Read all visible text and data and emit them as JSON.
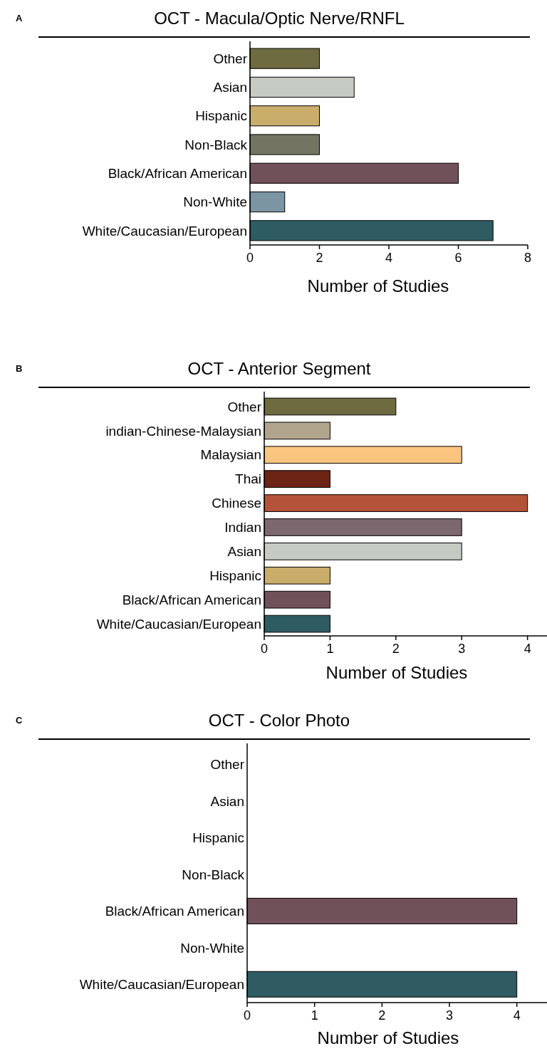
{
  "chart_data": [
    {
      "type": "bar",
      "orientation": "horizontal",
      "title": "OCT - Macula/Optic Nerve/RNFL",
      "annotations": [
        "A"
      ],
      "xlabel": "Number of Studies",
      "categories": [
        "Other",
        "Asian",
        "Hispanic",
        "Non-Black",
        "Black/African American",
        "Non-White",
        "White/Caucasian/European"
      ],
      "values": [
        2,
        3,
        2,
        2,
        6,
        1,
        7
      ],
      "colors": [
        "#6e6b40",
        "#c5cbc3",
        "#c9ad6a",
        "#737462",
        "#715159",
        "#7c95a3",
        "#2f5b62"
      ],
      "xlim": [
        0,
        8
      ],
      "xticks": [
        0,
        2,
        4,
        6,
        8
      ]
    },
    {
      "type": "bar",
      "orientation": "horizontal",
      "title": "OCT - Anterior Segment",
      "annotations": [
        "B"
      ],
      "xlabel": "Number of Studies",
      "categories": [
        "Other",
        "indian-Chinese-Malaysian",
        "Malaysian",
        "Thai",
        "Chinese",
        "Indian",
        "Asian",
        "Hispanic",
        "Black/African American",
        "White/Caucasian/European"
      ],
      "values": [
        2,
        1,
        3,
        1,
        4,
        3,
        3,
        1,
        1,
        1
      ],
      "colors": [
        "#6e6b40",
        "#b2a58e",
        "#fbc57f",
        "#6d2415",
        "#b5533a",
        "#7e6870",
        "#c5cbc3",
        "#c9ad6a",
        "#715159",
        "#2f5b62"
      ],
      "xlim": [
        0,
        4.35
      ],
      "xticks": [
        0,
        1,
        2,
        3,
        4
      ]
    },
    {
      "type": "bar",
      "orientation": "horizontal",
      "title": "OCT - Color Photo",
      "annotations": [
        "C"
      ],
      "xlabel": "Number of Studies",
      "categories": [
        "Other",
        "Asian",
        "Hispanic",
        "Non-Black",
        "Black/African American",
        "Non-White",
        "White/Caucasian/European"
      ],
      "values": [
        0,
        0,
        0,
        0,
        4,
        0,
        4
      ],
      "colors": [
        "#6e6b40",
        "#c5cbc3",
        "#c9ad6a",
        "#737462",
        "#715159",
        "#7c95a3",
        "#2f5b62"
      ],
      "xlim": [
        0,
        4.5
      ],
      "xticks": [
        0,
        1,
        2,
        3,
        4
      ]
    }
  ]
}
